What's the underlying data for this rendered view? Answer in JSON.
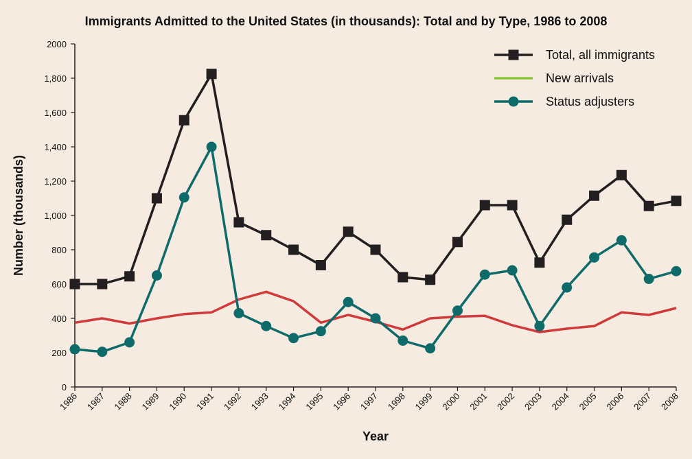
{
  "chart_data": {
    "type": "line",
    "title": "Immigrants Admitted to the United States (in thousands): Total and by Type, 1986 to 2008",
    "xlabel": "Year",
    "ylabel": "Number (thousands)",
    "ylim": [
      0,
      2000
    ],
    "y_ticks": [
      "0",
      "200",
      "400",
      "600",
      "800",
      "1,000",
      "1,200",
      "1,400",
      "1,600",
      "1,800",
      "2000"
    ],
    "y_tick_values": [
      0,
      200,
      400,
      600,
      800,
      1000,
      1200,
      1400,
      1600,
      1800,
      2000
    ],
    "x": [
      "1986",
      "1987",
      "1988",
      "1989",
      "1990",
      "1991",
      "1992",
      "1993",
      "1994",
      "1995",
      "1996",
      "1997",
      "1998",
      "1999",
      "2000",
      "2001",
      "2002",
      "2003",
      "2004",
      "2005",
      "2006",
      "2007",
      "2008"
    ],
    "grid": false,
    "legend_position": "top-right",
    "series": [
      {
        "name": "Total, all immigrants",
        "color": "#231f20",
        "marker": "square",
        "values": [
          600,
          600,
          645,
          1100,
          1555,
          1825,
          960,
          885,
          800,
          710,
          905,
          800,
          640,
          625,
          845,
          1060,
          1060,
          725,
          975,
          1115,
          1235,
          1055,
          1085
        ]
      },
      {
        "name": "New arrivals",
        "color": "#d03a3a",
        "legend_color": "#8cc63f",
        "marker": "none",
        "values": [
          375,
          400,
          370,
          400,
          425,
          435,
          510,
          555,
          500,
          375,
          420,
          380,
          335,
          400,
          410,
          415,
          360,
          320,
          340,
          355,
          435,
          420,
          460
        ]
      },
      {
        "name": "Status adjusters",
        "color": "#0f6a6a",
        "marker": "circle",
        "values": [
          220,
          205,
          260,
          650,
          1105,
          1400,
          430,
          355,
          285,
          325,
          495,
          400,
          270,
          225,
          445,
          655,
          680,
          355,
          580,
          755,
          855,
          630,
          675
        ]
      }
    ]
  }
}
